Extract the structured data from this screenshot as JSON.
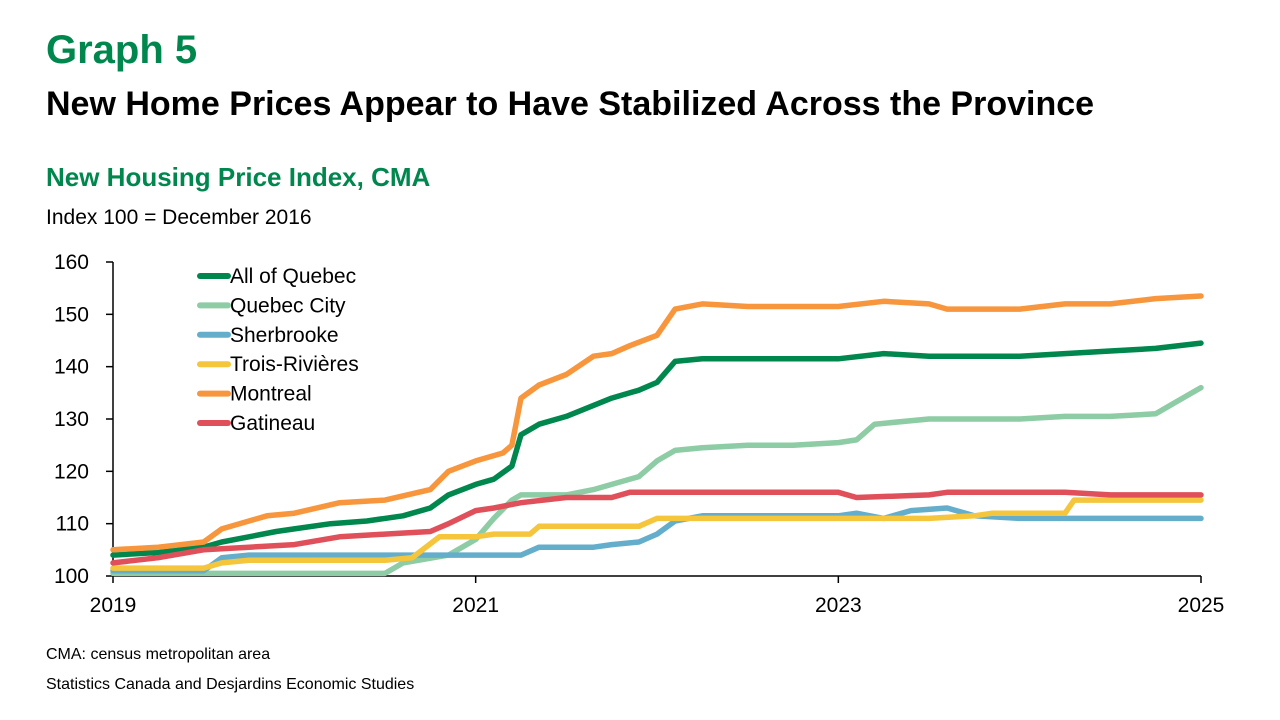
{
  "header": {
    "graph_label": "Graph 5",
    "title": "New Home Prices Appear to Have Stabilized Across the Province"
  },
  "chart_data": {
    "type": "line",
    "title": "New Housing Price Index, CMA",
    "ylabel": "Index 100 = December 2016",
    "xlabel": "",
    "ylim": [
      100,
      160
    ],
    "yticks": [
      100,
      110,
      120,
      130,
      140,
      150,
      160
    ],
    "xlim": [
      2019.0,
      2025.0
    ],
    "xticks": [
      "2019",
      "2021",
      "2023",
      "2025"
    ],
    "xtick_values": [
      2019,
      2021,
      2023,
      2025
    ],
    "legend_position": "top-left",
    "grid": false,
    "series": [
      {
        "name": "All of Quebec",
        "color": "#00874D",
        "x": [
          2019.0,
          2019.25,
          2019.5,
          2019.6,
          2019.75,
          2019.9,
          2020.0,
          2020.2,
          2020.4,
          2020.6,
          2020.75,
          2020.85,
          2021.0,
          2021.1,
          2021.2,
          2021.25,
          2021.35,
          2021.5,
          2021.75,
          2021.9,
          2022.0,
          2022.1,
          2022.25,
          2022.5,
          2022.75,
          2023.0,
          2023.25,
          2023.5,
          2023.75,
          2024.0,
          2024.25,
          2024.5,
          2024.75,
          2025.0
        ],
        "y": [
          104,
          104.5,
          105.5,
          106.5,
          107.5,
          108.5,
          109,
          110,
          110.5,
          111.5,
          113,
          115.5,
          117.5,
          118.5,
          121,
          127,
          129,
          130.5,
          134,
          135.5,
          137,
          141,
          141.5,
          141.5,
          141.5,
          141.5,
          142.5,
          142,
          142,
          142,
          142.5,
          143,
          143.5,
          144.5
        ]
      },
      {
        "name": "Quebec City",
        "color": "#8DCCA4",
        "x": [
          2019.0,
          2019.5,
          2020.0,
          2020.5,
          2020.6,
          2020.85,
          2021.0,
          2021.1,
          2021.2,
          2021.25,
          2021.5,
          2021.65,
          2021.75,
          2021.9,
          2022.0,
          2022.1,
          2022.25,
          2022.5,
          2022.75,
          2023.0,
          2023.1,
          2023.2,
          2023.5,
          2023.75,
          2024.0,
          2024.25,
          2024.5,
          2024.75,
          2024.85,
          2025.0
        ],
        "y": [
          100.5,
          100.5,
          100.5,
          100.5,
          102.5,
          104,
          107,
          111,
          114.5,
          115.5,
          115.5,
          116.5,
          117.5,
          119,
          122,
          124,
          124.5,
          125,
          125,
          125.5,
          126,
          129,
          130,
          130,
          130,
          130.5,
          130.5,
          131,
          133,
          136
        ]
      },
      {
        "name": "Sherbrooke",
        "color": "#64AECB",
        "x": [
          2019.0,
          2019.5,
          2019.6,
          2019.75,
          2020.0,
          2020.5,
          2021.0,
          2021.25,
          2021.35,
          2021.65,
          2021.75,
          2021.9,
          2022.0,
          2022.1,
          2022.25,
          2022.75,
          2023.0,
          2023.1,
          2023.25,
          2023.4,
          2023.6,
          2023.75,
          2024.0,
          2024.25,
          2024.5,
          2025.0
        ],
        "y": [
          101,
          101,
          103.5,
          104,
          104,
          104,
          104,
          104,
          105.5,
          105.5,
          106,
          106.5,
          108,
          110.5,
          111.5,
          111.5,
          111.5,
          112,
          111,
          112.5,
          113,
          111.5,
          111,
          111,
          111,
          111
        ]
      },
      {
        "name": "Trois-Rivières",
        "color": "#F5C53C",
        "x": [
          2019.0,
          2019.5,
          2019.6,
          2019.75,
          2020.0,
          2020.5,
          2020.65,
          2020.8,
          2021.0,
          2021.1,
          2021.3,
          2021.35,
          2021.5,
          2021.75,
          2021.9,
          2022.0,
          2022.5,
          2023.0,
          2023.5,
          2023.75,
          2023.85,
          2024.0,
          2024.25,
          2024.3,
          2025.0
        ],
        "y": [
          101.5,
          101.5,
          102.5,
          103,
          103,
          103,
          103.5,
          107.5,
          107.5,
          108,
          108,
          109.5,
          109.5,
          109.5,
          109.5,
          111,
          111,
          111,
          111,
          111.5,
          112,
          112,
          112,
          114.5,
          114.5
        ]
      },
      {
        "name": "Montreal",
        "color": "#F7963C",
        "x": [
          2019.0,
          2019.25,
          2019.5,
          2019.6,
          2019.75,
          2019.85,
          2020.0,
          2020.25,
          2020.5,
          2020.75,
          2020.85,
          2021.0,
          2021.15,
          2021.2,
          2021.25,
          2021.35,
          2021.5,
          2021.65,
          2021.75,
          2021.85,
          2022.0,
          2022.1,
          2022.25,
          2022.5,
          2022.75,
          2023.0,
          2023.25,
          2023.5,
          2023.6,
          2023.75,
          2024.0,
          2024.25,
          2024.5,
          2024.75,
          2025.0
        ],
        "y": [
          105,
          105.5,
          106.5,
          109,
          110.5,
          111.5,
          112,
          114,
          114.5,
          116.5,
          120,
          122,
          123.5,
          125,
          134,
          136.5,
          138.5,
          142,
          142.5,
          144,
          146,
          151,
          152,
          151.5,
          151.5,
          151.5,
          152.5,
          152,
          151,
          151,
          151,
          152,
          152,
          153,
          153.5
        ]
      },
      {
        "name": "Gatineau",
        "color": "#E0505A",
        "x": [
          2019.0,
          2019.25,
          2019.5,
          2019.75,
          2020.0,
          2020.25,
          2020.5,
          2020.75,
          2020.85,
          2021.0,
          2021.1,
          2021.25,
          2021.5,
          2021.75,
          2021.85,
          2022.0,
          2022.5,
          2023.0,
          2023.1,
          2023.5,
          2023.6,
          2024.0,
          2024.25,
          2024.5,
          2025.0
        ],
        "y": [
          102.5,
          103.5,
          105,
          105.5,
          106,
          107.5,
          108,
          108.5,
          110,
          112.5,
          113,
          114,
          115,
          115,
          116,
          116,
          116,
          116,
          115,
          115.5,
          116,
          116,
          116,
          115.5,
          115.5
        ]
      }
    ]
  },
  "footer": {
    "note": "CMA: census metropolitan area",
    "source": "Statistics Canada and Desjardins Economic Studies"
  }
}
